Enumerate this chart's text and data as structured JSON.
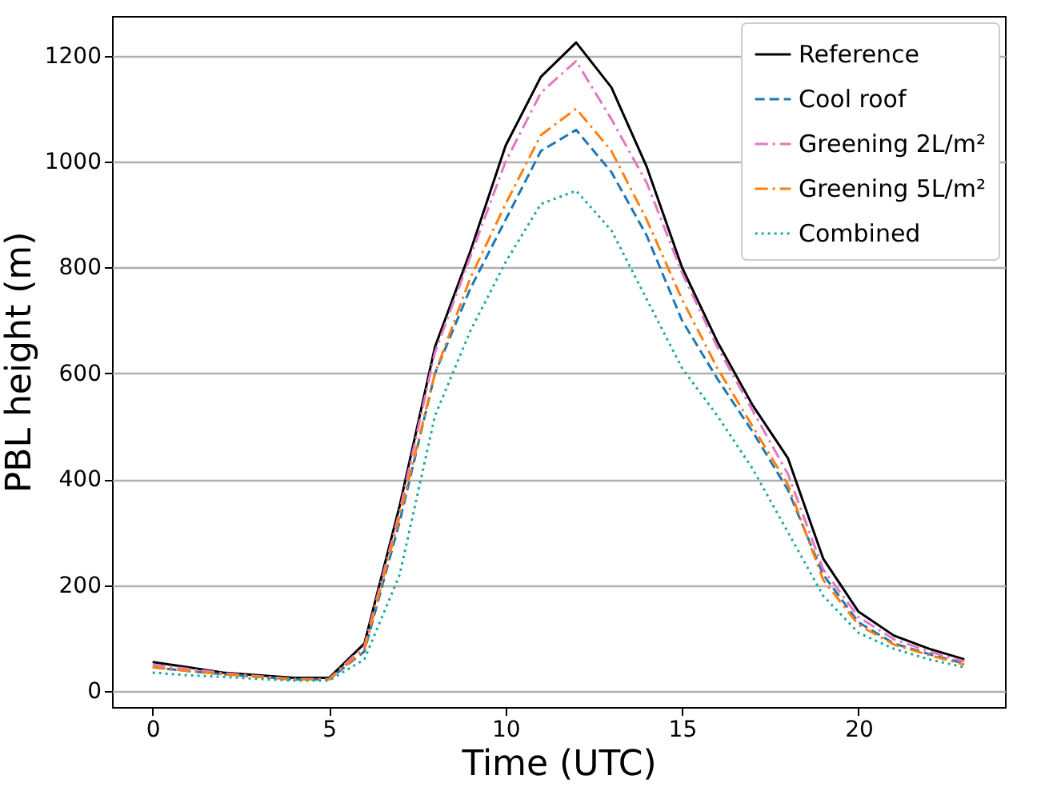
{
  "chart_data": {
    "type": "line",
    "xlabel": "Time (UTC)",
    "ylabel": "PBL height (m)",
    "x": [
      0,
      1,
      2,
      3,
      4,
      5,
      6,
      7,
      8,
      9,
      10,
      11,
      12,
      13,
      14,
      15,
      16,
      17,
      18,
      19,
      20,
      21,
      22,
      23
    ],
    "series": [
      {
        "name": "Reference",
        "color": "#000000",
        "line_style": "solid",
        "values": [
          55,
          45,
          35,
          30,
          25,
          25,
          90,
          350,
          650,
          830,
          1030,
          1160,
          1225,
          1140,
          990,
          800,
          660,
          540,
          440,
          250,
          150,
          105,
          80,
          60
        ]
      },
      {
        "name": "Cool roof",
        "color": "#1f77b4",
        "line_style": "dashed",
        "values": [
          45,
          38,
          32,
          27,
          22,
          22,
          75,
          320,
          600,
          760,
          890,
          1020,
          1060,
          980,
          860,
          700,
          590,
          490,
          380,
          220,
          130,
          90,
          70,
          52
        ]
      },
      {
        "name": "Greening 2L/m²",
        "color": "#e377c2",
        "line_style": "dashdot",
        "values": [
          50,
          42,
          34,
          28,
          23,
          23,
          85,
          340,
          640,
          820,
          1000,
          1130,
          1190,
          1080,
          960,
          790,
          650,
          530,
          410,
          230,
          140,
          98,
          75,
          56
        ]
      },
      {
        "name": "Greening 5L/m²",
        "color": "#ff7f0e",
        "line_style": "dashdot",
        "values": [
          45,
          38,
          32,
          27,
          22,
          22,
          78,
          330,
          600,
          780,
          920,
          1050,
          1100,
          1020,
          890,
          740,
          610,
          500,
          390,
          210,
          125,
          88,
          68,
          50
        ]
      },
      {
        "name": "Combined",
        "color": "#1fa99e",
        "line_style": "dotted",
        "values": [
          35,
          30,
          27,
          23,
          20,
          20,
          60,
          220,
          520,
          680,
          810,
          920,
          945,
          870,
          740,
          610,
          520,
          420,
          300,
          180,
          110,
          80,
          60,
          45
        ]
      }
    ],
    "xlim": [
      -1.15,
      24.15
    ],
    "xticks": [
      0,
      5,
      10,
      15,
      20
    ],
    "ylim": [
      -30,
      1275
    ],
    "yticks": [
      0,
      200,
      400,
      600,
      800,
      1000,
      1200
    ],
    "grid": "y",
    "legend": "top right",
    "marker": "none"
  }
}
